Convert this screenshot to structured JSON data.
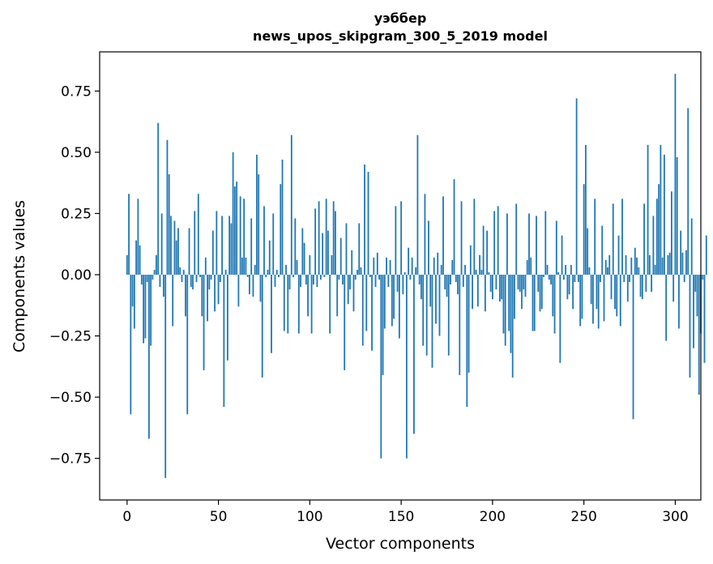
{
  "chart_data": {
    "type": "bar",
    "title_line1": "уэббер",
    "title_line2": "news_upos_skipgram_300_5_2019 model",
    "xlabel": "Vector components",
    "ylabel": "Components values",
    "xlim": [
      -15,
      314
    ],
    "ylim": [
      -0.92,
      0.91
    ],
    "xticks": [
      0,
      50,
      100,
      150,
      200,
      250,
      300
    ],
    "xtick_labels": [
      "0",
      "50",
      "100",
      "150",
      "200",
      "250",
      "300"
    ],
    "yticks": [
      -0.75,
      -0.5,
      -0.25,
      0.0,
      0.25,
      0.5,
      0.75
    ],
    "ytick_labels": [
      "−0.75",
      "−0.50",
      "−0.25",
      "0.00",
      "0.25",
      "0.50",
      "0.75"
    ],
    "bar_color": "#1f77b4",
    "grid": false,
    "values": [
      0.08,
      0.33,
      -0.57,
      -0.13,
      -0.22,
      0.14,
      0.31,
      0.12,
      -0.04,
      -0.28,
      -0.26,
      -0.03,
      -0.67,
      -0.29,
      -0.02,
      0.02,
      0.08,
      0.62,
      -0.05,
      0.25,
      -0.09,
      -0.83,
      0.55,
      0.41,
      0.24,
      -0.21,
      0.22,
      0.14,
      0.19,
      0.03,
      -0.03,
      0.02,
      -0.17,
      -0.57,
      0.19,
      -0.05,
      -0.06,
      0.26,
      -0.03,
      0.33,
      -0.01,
      -0.17,
      -0.39,
      0.07,
      -0.19,
      -0.06,
      -0.02,
      0.18,
      -0.15,
      0.26,
      -0.12,
      -0.03,
      0.24,
      -0.54,
      0.02,
      -0.35,
      0.24,
      0.21,
      0.5,
      0.36,
      0.38,
      -0.13,
      0.32,
      0.07,
      0.31,
      0.07,
      -0.01,
      -0.08,
      0.23,
      -0.09,
      0.04,
      0.49,
      0.41,
      -0.11,
      -0.42,
      0.28,
      -0.01,
      0.02,
      0.14,
      -0.32,
      0.25,
      -0.05,
      0.02,
      -0.01,
      0.37,
      0.47,
      -0.23,
      0.04,
      -0.24,
      -0.06,
      0.57,
      -0.01,
      0.23,
      0.06,
      -0.24,
      -0.05,
      0.19,
      0.13,
      -0.04,
      -0.17,
      0.08,
      -0.24,
      -0.04,
      0.27,
      -0.05,
      0.3,
      -0.02,
      0.17,
      -0.01,
      0.31,
      0.18,
      -0.24,
      0.08,
      0.3,
      0.26,
      -0.17,
      -0.02,
      0.15,
      -0.04,
      -0.39,
      0.21,
      -0.12,
      -0.06,
      0.1,
      -0.15,
      -0.02,
      0.02,
      0.21,
      0.03,
      -0.29,
      0.45,
      -0.23,
      0.42,
      -0.01,
      -0.31,
      0.07,
      -0.05,
      0.09,
      -0.02,
      -0.75,
      -0.41,
      -0.22,
      0.07,
      -0.05,
      0.06,
      -0.21,
      -0.18,
      0.28,
      -0.07,
      -0.26,
      0.3,
      -0.08,
      0.01,
      -0.75,
      0.11,
      -0.02,
      0.07,
      -0.65,
      0.03,
      0.57,
      -0.04,
      -0.1,
      -0.29,
      0.33,
      -0.33,
      0.22,
      -0.13,
      -0.38,
      0.07,
      -0.2,
      0.09,
      -0.25,
      0.04,
      0.32,
      -0.06,
      -0.09,
      -0.33,
      -0.04,
      0.06,
      0.39,
      -0.03,
      -0.08,
      -0.41,
      0.3,
      -0.05,
      0.04,
      -0.54,
      -0.4,
      0.12,
      -0.14,
      0.31,
      0.02,
      -0.13,
      0.08,
      0.02,
      0.2,
      -0.15,
      0.18,
      0.01,
      -0.07,
      -0.1,
      0.26,
      -0.06,
      0.28,
      -0.11,
      -0.1,
      -0.24,
      -0.29,
      0.25,
      -0.23,
      -0.32,
      -0.42,
      -0.18,
      0.29,
      -0.06,
      -0.07,
      -0.14,
      -0.06,
      -0.09,
      0.06,
      0.25,
      0.07,
      -0.23,
      -0.23,
      0.24,
      -0.07,
      -0.15,
      -0.14,
      -0.01,
      0.26,
      0.04,
      -0.02,
      -0.04,
      -0.17,
      -0.24,
      0.22,
      0.01,
      -0.36,
      0.16,
      -0.02,
      0.04,
      -0.1,
      -0.08,
      0.04,
      -0.14,
      -0.03,
      0.72,
      -0.03,
      -0.21,
      -0.18,
      0.37,
      0.53,
      0.19,
      0.03,
      -0.12,
      -0.2,
      0.31,
      -0.14,
      -0.22,
      -0.03,
      0.2,
      -0.19,
      0.06,
      0.03,
      0.08,
      -0.1,
      0.29,
      -0.14,
      -0.17,
      0.16,
      -0.21,
      0.31,
      -0.03,
      0.08,
      -0.11,
      -0.03,
      0.07,
      -0.59,
      0.11,
      0.07,
      0.03,
      -0.09,
      -0.1,
      0.29,
      -0.07,
      0.53,
      0.08,
      -0.07,
      0.24,
      0.04,
      0.31,
      0.37,
      0.53,
      0.07,
      0.49,
      -0.27,
      0.08,
      0.09,
      0.34,
      -0.11,
      0.82,
      0.48,
      -0.22,
      0.18,
      0.09,
      -0.03,
      0.1,
      0.68,
      -0.42,
      0.23,
      -0.3,
      -0.07,
      -0.17,
      -0.49,
      -0.24,
      -0.02,
      -0.36,
      0.16
    ]
  }
}
